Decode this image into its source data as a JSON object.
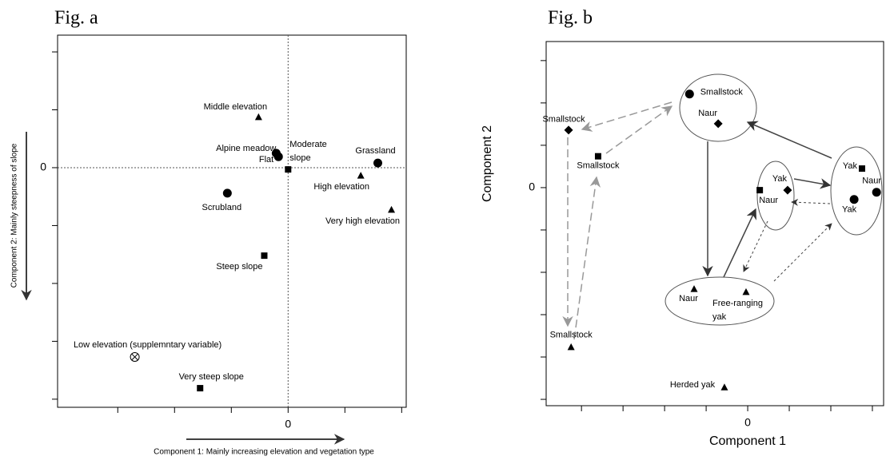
{
  "chart_data": [
    {
      "type": "scatter",
      "title": "Fig. a",
      "x_label": "Component  1: Mainly increasing elevation and vegetation type",
      "y_label": "Component  2: Mainly steepness of slope",
      "xlim": [
        -4.06,
        2.08
      ],
      "ylim": [
        -4.14,
        2.29
      ],
      "xticks": [
        0
      ],
      "yticks": [
        0
      ],
      "minor_xticks": [
        -3,
        -2,
        -1,
        1,
        2
      ],
      "minor_yticks": [
        2,
        1,
        -1,
        -2,
        -3,
        -4
      ],
      "zero_lines": true,
      "points": [
        {
          "label": "Middle elevation",
          "x": -0.52,
          "y": 0.87,
          "marker": "triangle"
        },
        {
          "label": "Alpine meadow",
          "x": -0.21,
          "y": 0.25,
          "marker": "circle"
        },
        {
          "label": "Flat",
          "x": -0.17,
          "y": 0.19,
          "marker": "circle"
        },
        {
          "label": [
            "Moderate",
            "slope"
          ],
          "x": 0,
          "y": -0.03,
          "marker": "square"
        },
        {
          "label": "Grassland",
          "x": 1.58,
          "y": 0.08,
          "marker": "circle"
        },
        {
          "label": "High elevation",
          "x": 1.28,
          "y": -0.14,
          "marker": "triangle"
        },
        {
          "label": "Very high elevation",
          "x": 1.82,
          "y": -0.73,
          "marker": "triangle"
        },
        {
          "label": "Scrubland",
          "x": -1.07,
          "y": -0.44,
          "marker": "circle"
        },
        {
          "label": "Steep slope",
          "x": -0.42,
          "y": -1.52,
          "marker": "square"
        },
        {
          "label": "Low elevation (supplemntary variable)",
          "x": -2.7,
          "y": -3.27,
          "marker": "otimes"
        },
        {
          "label": "Very steep slope",
          "x": -1.55,
          "y": -3.81,
          "marker": "square"
        }
      ]
    },
    {
      "type": "scatter",
      "title": "Fig. b",
      "x_label": "Component  1",
      "y_label": "Component  2",
      "xlim": [
        -4.85,
        3.27
      ],
      "ylim": [
        -5.15,
        3.45
      ],
      "xticks": [
        0
      ],
      "yticks": [
        0
      ],
      "minor_xticks": [
        -4,
        -3,
        -2,
        -1,
        1,
        2,
        3
      ],
      "minor_yticks": [
        3,
        2,
        1,
        -1,
        -2,
        -3,
        -4,
        -5
      ],
      "zero_lines": false,
      "points": [
        {
          "label": "Smallstock",
          "x": -1.4,
          "y": 2.21,
          "marker": "circle"
        },
        {
          "label": "Naur",
          "x": -0.71,
          "y": 1.51,
          "marker": "diamond"
        },
        {
          "label": "Smallstock",
          "x": -4.31,
          "y": 1.36,
          "marker": "diamond"
        },
        {
          "label": "Smallstock",
          "x": -3.6,
          "y": 0.74,
          "marker": "square"
        },
        {
          "label": "Yak",
          "x": 0.96,
          "y": -0.06,
          "marker": "diamond"
        },
        {
          "label": "Naur",
          "x": 0.29,
          "y": -0.06,
          "marker": "square"
        },
        {
          "label": "Yak",
          "x": 2.75,
          "y": 0.45,
          "marker": "square"
        },
        {
          "label": "Naur",
          "x": 3.1,
          "y": -0.11,
          "marker": "circle"
        },
        {
          "label": "Yak",
          "x": 2.56,
          "y": -0.28,
          "marker": "circle"
        },
        {
          "label": "Naur",
          "x": -1.29,
          "y": -2.4,
          "marker": "triangle"
        },
        {
          "label": [
            "Free-ranging",
            "yak"
          ],
          "x": -0.04,
          "y": -2.47,
          "marker": "triangle"
        },
        {
          "label": "Smallstock",
          "x": -4.25,
          "y": -3.77,
          "marker": "triangle"
        },
        {
          "label": "Herded yak",
          "x": -0.56,
          "y": -4.72,
          "marker": "triangle"
        }
      ]
    }
  ]
}
